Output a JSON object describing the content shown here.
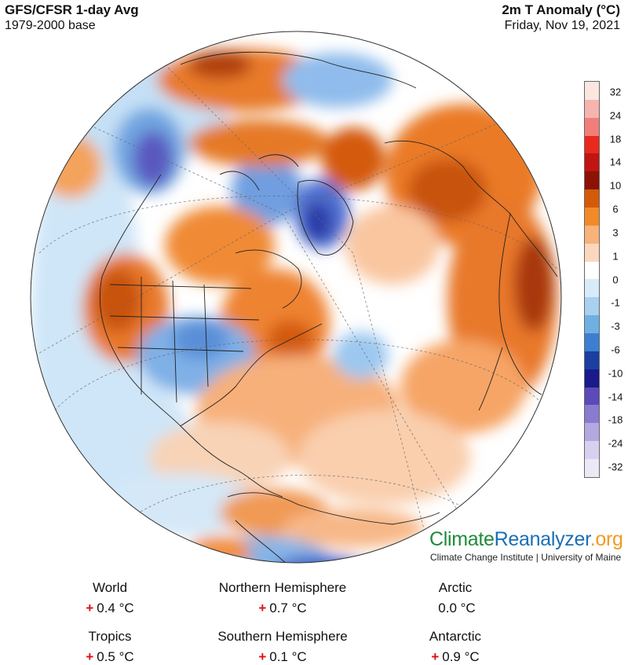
{
  "header": {
    "title_left": "GFS/CFSR 1-day Avg",
    "subtitle_left": "1979-2000 base",
    "title_right": "2m T Anomaly (°C)",
    "subtitle_right": "Friday, Nov 19, 2021"
  },
  "legend": {
    "ticks": [
      "32",
      "24",
      "18",
      "14",
      "10",
      "6",
      "3",
      "1",
      "0",
      "-1",
      "-3",
      "-6",
      "-10",
      "-14",
      "-18",
      "-24",
      "-32"
    ],
    "colors": [
      "#fbe6e0",
      "#f7b4ae",
      "#f27e79",
      "#e82a1d",
      "#c01512",
      "#8c1205",
      "#d45a0a",
      "#f38a2a",
      "#f8b27a",
      "#fbd8bd",
      "#ffffff",
      "#d8ebf8",
      "#a9d0ef",
      "#6fb0e3",
      "#3c7fd0",
      "#1a3fa0",
      "#1a1a8a",
      "#5b4ab8",
      "#8a7ad0",
      "#b4a8e0",
      "#d8d0ef",
      "#ede8f6"
    ]
  },
  "brand": {
    "part1": "Climate",
    "part2": "Reanalyzer",
    "part3": ".org",
    "subtitle": "Climate Change Institute | University of Maine"
  },
  "stats": [
    {
      "label": "World",
      "sign": "+",
      "value": "0.4 °C"
    },
    {
      "label": "Northern Hemisphere",
      "sign": "+",
      "value": "0.7 °C"
    },
    {
      "label": "Arctic",
      "sign": "",
      "value": "0.0 °C"
    },
    {
      "label": "Tropics",
      "sign": "+",
      "value": "0.5 °C"
    },
    {
      "label": "Southern Hemisphere",
      "sign": "+",
      "value": "0.1 °C"
    },
    {
      "label": "Antarctic",
      "sign": "+",
      "value": "0.9 °C"
    }
  ]
}
